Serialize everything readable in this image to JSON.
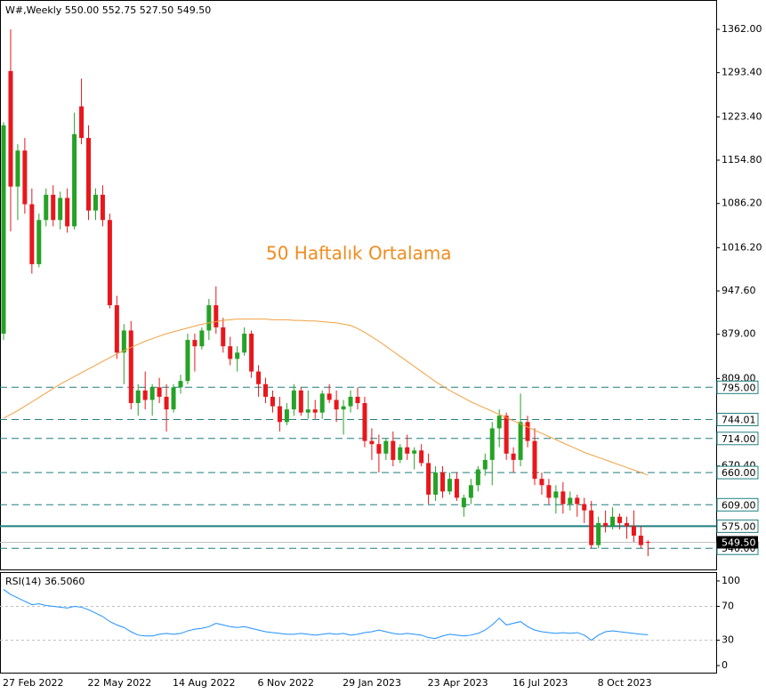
{
  "chart_data": [
    {
      "type": "candlestick",
      "title": "W#,Weekly  550.00 552.75 527.50 549.50",
      "annotation": "50 Haftalık Ortalama",
      "categories": [
        "27 Feb 2022",
        null,
        null,
        null,
        null,
        null,
        null,
        null,
        null,
        null,
        null,
        null,
        "22 May 2022",
        null,
        null,
        null,
        null,
        null,
        null,
        null,
        null,
        null,
        null,
        null,
        "14 Aug 2022",
        null,
        null,
        null,
        null,
        null,
        null,
        null,
        null,
        null,
        null,
        null,
        "6 Nov 2022",
        null,
        null,
        null,
        null,
        null,
        null,
        null,
        null,
        null,
        null,
        null,
        "29 Jan 2023",
        null,
        null,
        null,
        null,
        null,
        null,
        null,
        null,
        null,
        null,
        null,
        "23 Apr 2023",
        null,
        null,
        null,
        null,
        null,
        null,
        null,
        null,
        null,
        null,
        null,
        "16 Jul 2023",
        null,
        null,
        null,
        null,
        null,
        null,
        null,
        null,
        null,
        null,
        null,
        "8 Oct 2023",
        null,
        null,
        null,
        null,
        null,
        null,
        null
      ],
      "open": [
        880,
        1296,
        1113,
        1170,
        1085,
        990,
        1060,
        1100,
        1060,
        1095,
        1050,
        1240,
        1190,
        1075,
        1100,
        1060,
        925,
        850,
        885,
        770,
        790,
        775,
        795,
        780,
        760,
        795,
        805,
        870,
        860,
        885,
        925,
        890,
        860,
        840,
        850,
        880,
        820,
        800,
        780,
        765,
        740,
        760,
        790,
        755,
        760,
        755,
        785,
        775,
        760,
        765,
        780,
        770,
        710,
        705,
        690,
        710,
        680,
        700,
        690,
        695,
        675,
        625,
        660,
        630,
        650,
        605,
        620,
        640,
        665,
        680,
        730,
        750,
        690,
        680,
        740,
        710,
        650,
        640,
        620,
        630,
        610,
        620,
        610,
        600,
        545,
        580,
        575,
        590,
        580,
        575,
        560,
        550
      ],
      "high": [
        1215,
        1362,
        1180,
        1190,
        1110,
        1070,
        1110,
        1115,
        1105,
        1110,
        1230,
        1284,
        1210,
        1110,
        1115,
        1070,
        940,
        895,
        900,
        800,
        820,
        800,
        810,
        800,
        800,
        815,
        880,
        880,
        890,
        935,
        955,
        905,
        875,
        860,
        890,
        885,
        830,
        810,
        790,
        780,
        770,
        800,
        795,
        790,
        775,
        790,
        800,
        790,
        775,
        790,
        795,
        780,
        730,
        720,
        715,
        725,
        705,
        720,
        700,
        705,
        690,
        670,
        670,
        660,
        660,
        625,
        650,
        670,
        690,
        740,
        760,
        755,
        700,
        785,
        750,
        730,
        660,
        650,
        640,
        645,
        630,
        625,
        620,
        615,
        590,
        600,
        605,
        595,
        590,
        600,
        575,
        552.75
      ],
      "low": [
        870,
        1042,
        1060,
        1070,
        975,
        985,
        1050,
        1050,
        1045,
        1040,
        1045,
        1180,
        1060,
        1060,
        1050,
        920,
        840,
        800,
        760,
        750,
        760,
        750,
        770,
        725,
        755,
        785,
        800,
        820,
        855,
        870,
        880,
        850,
        830,
        820,
        845,
        810,
        780,
        770,
        755,
        725,
        735,
        750,
        750,
        745,
        745,
        745,
        770,
        740,
        720,
        755,
        760,
        700,
        680,
        660,
        680,
        670,
        675,
        680,
        665,
        670,
        610,
        615,
        620,
        625,
        615,
        590,
        610,
        630,
        655,
        640,
        700,
        680,
        660,
        670,
        700,
        640,
        625,
        610,
        595,
        595,
        600,
        590,
        580,
        540,
        540,
        565,
        570,
        570,
        555,
        550,
        540,
        527.5
      ],
      "close": [
        1210,
        1113,
        1170,
        1085,
        990,
        1060,
        1100,
        1060,
        1095,
        1050,
        1196,
        1190,
        1075,
        1100,
        1060,
        925,
        850,
        885,
        770,
        790,
        775,
        795,
        780,
        760,
        795,
        805,
        870,
        860,
        885,
        925,
        890,
        860,
        840,
        850,
        880,
        820,
        800,
        780,
        765,
        740,
        760,
        790,
        755,
        760,
        755,
        785,
        775,
        760,
        765,
        780,
        770,
        710,
        705,
        690,
        710,
        680,
        700,
        690,
        695,
        675,
        625,
        660,
        630,
        650,
        620,
        620,
        640,
        665,
        680,
        730,
        750,
        690,
        680,
        740,
        710,
        650,
        640,
        620,
        630,
        610,
        620,
        610,
        600,
        545,
        580,
        575,
        590,
        580,
        575,
        560,
        545,
        549.5
      ],
      "up_color": "#26a226",
      "down_color": "#e8171c",
      "overlay": {
        "color": "#f0a040",
        "values": [
          746,
          752,
          758,
          765,
          772,
          779,
          786,
          793,
          800,
          806,
          812,
          818,
          824,
          830,
          836,
          842,
          848,
          853,
          858,
          863,
          868,
          872,
          876,
          880,
          883,
          886,
          889,
          892,
          895,
          897,
          899,
          901,
          902,
          903,
          903,
          903,
          903,
          903,
          902,
          902,
          902,
          901,
          901,
          900,
          900,
          899,
          898,
          897,
          895,
          893,
          888,
          882,
          875,
          868,
          860,
          852,
          844,
          836,
          828,
          820,
          812,
          804,
          797,
          790,
          784,
          778,
          772,
          767,
          762,
          757,
          752,
          747,
          742,
          737,
          732,
          727,
          722,
          717,
          712,
          707,
          702,
          697,
          692,
          688,
          684,
          680,
          676,
          672,
          668,
          664,
          660,
          656
        ]
      },
      "levels": {
        "color": "#1f7f7f",
        "values": [
          795,
          744.01,
          714,
          660,
          609,
          575,
          540
        ],
        "value_labels": [
          "795.00",
          "744.01",
          "714.00",
          "660.00",
          "609.00",
          "575.00",
          "540.00"
        ],
        "styles": [
          "dashed",
          "dashed",
          "dashed",
          "dashed",
          "dashed",
          "solid",
          "dashed"
        ]
      },
      "last_price": {
        "value": 549.5,
        "label": "549.50"
      },
      "ylim": [
        506.5,
        1408.5
      ],
      "yticks": [
        {
          "value": 1362,
          "label": "1362.00"
        },
        {
          "value": 1293.4,
          "label": "1293.40"
        },
        {
          "value": 1223.4,
          "label": "1223.40"
        },
        {
          "value": 1154.8,
          "label": "1154.80"
        },
        {
          "value": 1086.2,
          "label": "1086.20"
        },
        {
          "value": 1016.2,
          "label": "1016.20"
        },
        {
          "value": 947.6,
          "label": "947.60"
        },
        {
          "value": 879,
          "label": "879.00"
        },
        {
          "value": 809,
          "label": "809.00"
        },
        {
          "value": 670.4,
          "label": "670.40"
        }
      ]
    },
    {
      "type": "line",
      "title": "RSI(14) 36.5060",
      "color": "#1e90ff",
      "values": [
        90,
        84,
        80,
        76,
        72,
        73,
        71,
        70,
        69,
        68,
        70,
        69,
        66,
        62,
        58,
        52,
        48,
        45,
        40,
        36,
        35,
        35,
        37,
        38,
        37,
        38,
        41,
        43,
        44,
        46,
        50,
        48,
        46,
        45,
        46,
        44,
        42,
        40,
        39,
        38,
        37,
        37,
        38,
        37,
        36,
        37,
        38,
        37,
        38,
        36,
        37,
        39,
        40,
        42,
        40,
        38,
        37,
        38,
        37,
        36,
        33,
        32,
        35,
        37,
        36,
        35,
        36,
        38,
        42,
        48,
        56,
        48,
        50,
        52,
        46,
        42,
        40,
        39,
        38,
        39,
        38,
        39,
        36,
        30,
        36,
        40,
        41,
        40,
        39,
        38,
        37,
        36.506
      ],
      "levels": [
        70,
        30
      ],
      "ylim": [
        -9.4,
        109.4
      ],
      "yticks": [
        100,
        70,
        30,
        0
      ]
    }
  ]
}
